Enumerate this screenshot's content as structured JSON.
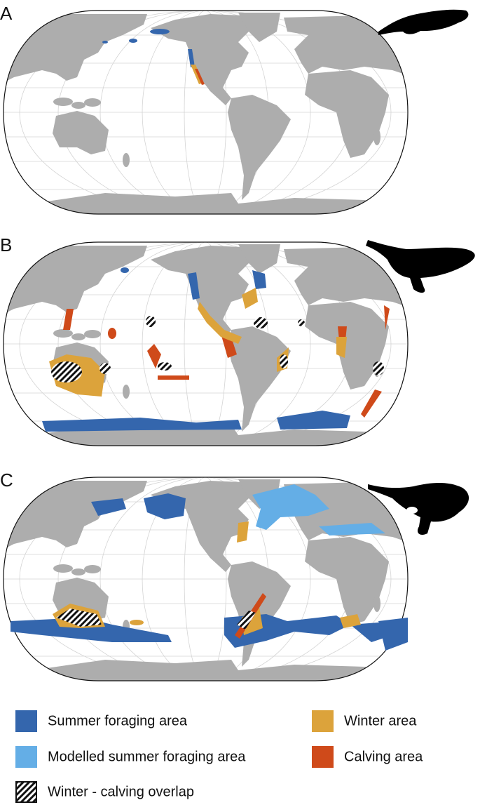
{
  "panels": [
    {
      "label": "A"
    },
    {
      "label": "B"
    },
    {
      "label": "C"
    }
  ],
  "legend": [
    {
      "label": "Summer foraging area"
    },
    {
      "label": "Winter area"
    },
    {
      "label": "Modelled summer foraging area"
    },
    {
      "label": "Calving area"
    },
    {
      "label": "Winter - calving overlap"
    }
  ]
}
